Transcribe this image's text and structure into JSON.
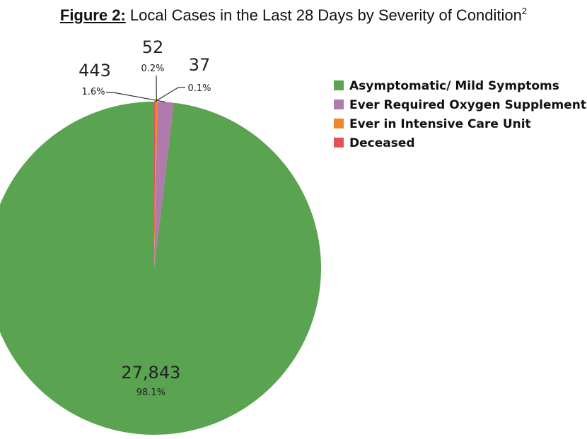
{
  "figure": {
    "label": "Figure 2:",
    "title": "Local Cases in the Last 28 Days by Severity of Condition",
    "footnote": "2"
  },
  "chart_data": {
    "type": "pie",
    "title": "Local Cases in the Last 28 Days by Severity of Condition",
    "start_angle_deg": 0,
    "direction": "counterclockwise",
    "legend_position": "top-right",
    "slices": [
      {
        "name": "Asymptomatic/ Mild Symptoms",
        "value": 27843,
        "percent": "98.1%",
        "value_label": "27,843",
        "color": "#5aa350"
      },
      {
        "name": "Ever Required Oxygen Supplementation",
        "value": 443,
        "percent": "1.6%",
        "value_label": "443",
        "color": "#b07aad"
      },
      {
        "name": "Ever in Intensive Care Unit",
        "value": 52,
        "percent": "0.2%",
        "value_label": "52",
        "color": "#f0862a"
      },
      {
        "name": "Deceased",
        "value": 37,
        "percent": "0.1%",
        "value_label": "37",
        "color": "#e15454"
      }
    ]
  }
}
